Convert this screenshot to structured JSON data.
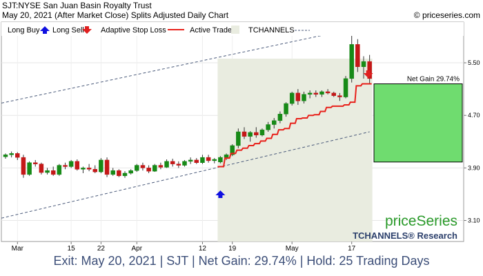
{
  "header": {
    "line1": "SJT:NYSE San Juan Basin Royalty Trust",
    "line2": "May 20, 2021 (After Market Close)  Splits Adjusted Daily Chart",
    "copyright": "© priceseries.com"
  },
  "legend": {
    "long_buy": "Long Buy",
    "long_sell": "Long Sell",
    "stop_loss": "Adaptive Stop Loss",
    "active_trade": "Active Trade",
    "tchannels": "TCHANNELS"
  },
  "brand": {
    "logo": "priceSeries",
    "research": "TCHANNELS® Research"
  },
  "footer": "Exit: May 20, 2021 | SJT | Net Gain: 29.74% | Hold: 25 Trading Days",
  "chart_data": {
    "type": "candlestick",
    "y_ticks": [
      "5.50",
      "4.70",
      "3.90",
      "3.10"
    ],
    "y_tick_values": [
      5.5,
      4.7,
      3.9,
      3.1
    ],
    "x_ticks": [
      "Mar",
      "15",
      "22",
      "Apr",
      "12",
      "19",
      "May",
      "17"
    ],
    "x_tick_index": [
      2,
      11,
      16,
      22,
      33,
      38,
      48,
      58
    ],
    "ylim": [
      2.78,
      6.12
    ],
    "num_bars": 62,
    "net_gain_label": "Net Gain 29.74%",
    "entry": {
      "index": 36,
      "price": 3.99
    },
    "exit": {
      "index": 61,
      "price": 5.18
    },
    "trade_box": {
      "start_index": 36,
      "end_index": 61
    },
    "ohlc": [
      [
        4.07,
        4.12,
        4.04,
        4.1
      ],
      [
        4.1,
        4.15,
        4.06,
        4.12
      ],
      [
        4.12,
        4.14,
        4.02,
        4.06
      ],
      [
        4.06,
        4.1,
        3.75,
        3.8
      ],
      [
        3.8,
        4.0,
        3.78,
        3.98
      ],
      [
        3.98,
        4.02,
        3.92,
        3.96
      ],
      [
        3.96,
        3.98,
        3.8,
        3.83
      ],
      [
        3.83,
        3.9,
        3.8,
        3.86
      ],
      [
        3.86,
        3.92,
        3.78,
        3.8
      ],
      [
        3.8,
        3.96,
        3.78,
        3.94
      ],
      [
        3.94,
        3.98,
        3.88,
        3.92
      ],
      [
        3.92,
        4.02,
        3.9,
        4.0
      ],
      [
        4.0,
        4.03,
        3.86,
        3.88
      ],
      [
        3.88,
        3.92,
        3.82,
        3.9
      ],
      [
        3.9,
        3.96,
        3.85,
        3.88
      ],
      [
        3.88,
        3.94,
        3.82,
        3.84
      ],
      [
        3.84,
        4.05,
        3.82,
        4.02
      ],
      [
        4.02,
        4.06,
        3.76,
        3.8
      ],
      [
        3.8,
        3.9,
        3.78,
        3.86
      ],
      [
        3.86,
        3.88,
        3.76,
        3.78
      ],
      [
        3.78,
        3.85,
        3.75,
        3.82
      ],
      [
        3.82,
        3.88,
        3.8,
        3.86
      ],
      [
        3.86,
        3.96,
        3.84,
        3.94
      ],
      [
        3.94,
        3.98,
        3.86,
        3.9
      ],
      [
        3.9,
        3.94,
        3.82,
        3.85
      ],
      [
        3.85,
        3.96,
        3.84,
        3.94
      ],
      [
        3.94,
        3.98,
        3.88,
        3.91
      ],
      [
        3.91,
        4.03,
        3.9,
        4.0
      ],
      [
        4.0,
        4.04,
        3.92,
        3.96
      ],
      [
        3.96,
        4.0,
        3.9,
        3.94
      ],
      [
        3.94,
        4.02,
        3.92,
        4.0
      ],
      [
        4.0,
        4.06,
        3.96,
        4.02
      ],
      [
        4.02,
        4.05,
        3.96,
        3.98
      ],
      [
        3.98,
        4.1,
        3.96,
        4.06
      ],
      [
        4.06,
        4.1,
        3.98,
        4.01
      ],
      [
        4.01,
        4.05,
        3.97,
        4.03
      ],
      [
        3.99,
        4.08,
        3.97,
        4.06
      ],
      [
        4.06,
        4.12,
        4.02,
        4.1
      ],
      [
        4.1,
        4.26,
        4.08,
        4.24
      ],
      [
        4.24,
        4.5,
        4.2,
        4.45
      ],
      [
        4.45,
        4.52,
        4.34,
        4.38
      ],
      [
        4.38,
        4.46,
        4.3,
        4.44
      ],
      [
        4.44,
        4.52,
        4.36,
        4.4
      ],
      [
        4.4,
        4.5,
        4.38,
        4.48
      ],
      [
        4.48,
        4.6,
        4.45,
        4.56
      ],
      [
        4.56,
        4.66,
        4.5,
        4.62
      ],
      [
        4.62,
        4.76,
        4.58,
        4.72
      ],
      [
        4.72,
        4.9,
        4.68,
        4.88
      ],
      [
        4.88,
        5.06,
        4.85,
        5.04
      ],
      [
        5.04,
        5.1,
        4.86,
        4.92
      ],
      [
        4.92,
        5.06,
        4.88,
        5.02
      ],
      [
        5.02,
        5.08,
        4.96,
        5.04
      ],
      [
        5.04,
        5.08,
        4.98,
        5.02
      ],
      [
        5.02,
        5.08,
        4.98,
        5.06
      ],
      [
        5.06,
        5.1,
        5.02,
        5.04
      ],
      [
        5.04,
        5.06,
        4.98,
        5.0
      ],
      [
        5.0,
        5.04,
        4.92,
        4.98
      ],
      [
        4.98,
        5.3,
        4.96,
        5.26
      ],
      [
        5.26,
        5.92,
        5.2,
        5.78
      ],
      [
        5.78,
        5.86,
        5.36,
        5.44
      ],
      [
        5.44,
        5.6,
        5.26,
        5.52
      ],
      [
        5.52,
        5.62,
        5.18,
        5.26
      ]
    ],
    "stop_loss": [
      [
        36,
        3.92
      ],
      [
        37,
        4.05
      ],
      [
        38,
        4.12
      ],
      [
        39,
        4.17
      ],
      [
        40,
        4.2
      ],
      [
        41,
        4.24
      ],
      [
        42,
        4.27
      ],
      [
        43,
        4.31
      ],
      [
        44,
        4.35
      ],
      [
        45,
        4.41
      ],
      [
        46,
        4.48
      ],
      [
        47,
        4.5
      ],
      [
        48,
        4.58
      ],
      [
        49,
        4.65
      ],
      [
        50,
        4.66
      ],
      [
        51,
        4.7
      ],
      [
        52,
        4.71
      ],
      [
        53,
        4.76
      ],
      [
        54,
        4.82
      ],
      [
        55,
        4.84
      ],
      [
        56,
        4.84
      ],
      [
        57,
        4.86
      ],
      [
        58,
        4.9
      ],
      [
        59,
        5.15
      ],
      [
        60,
        5.18
      ],
      [
        61,
        5.18
      ]
    ],
    "channel_upper": [
      [
        0,
        4.9
      ],
      [
        61,
        6.07
      ]
    ],
    "channel_lower": [
      [
        0,
        3.15
      ],
      [
        61,
        4.45
      ]
    ]
  }
}
